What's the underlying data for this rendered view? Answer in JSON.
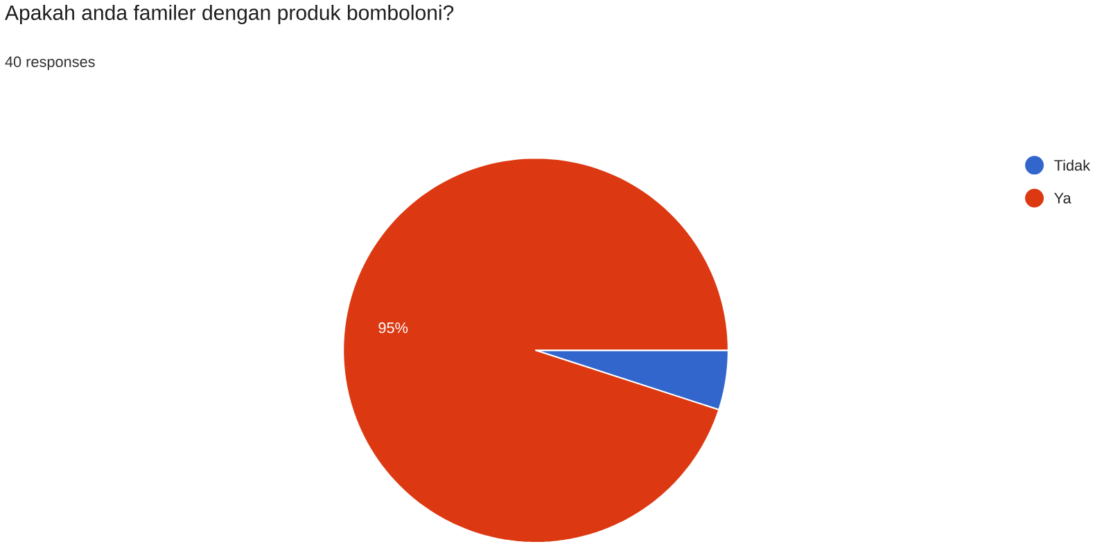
{
  "chart_data": {
    "type": "pie",
    "title": "Apakah anda familer dengan produk bomboloni?",
    "subtitle": "40 responses",
    "categories": [
      "Tidak",
      "Ya"
    ],
    "values": [
      5,
      95
    ],
    "colors": [
      "#3366cc",
      "#dc3912"
    ],
    "value_labels": [
      null,
      "95%"
    ],
    "legend": "top right"
  }
}
